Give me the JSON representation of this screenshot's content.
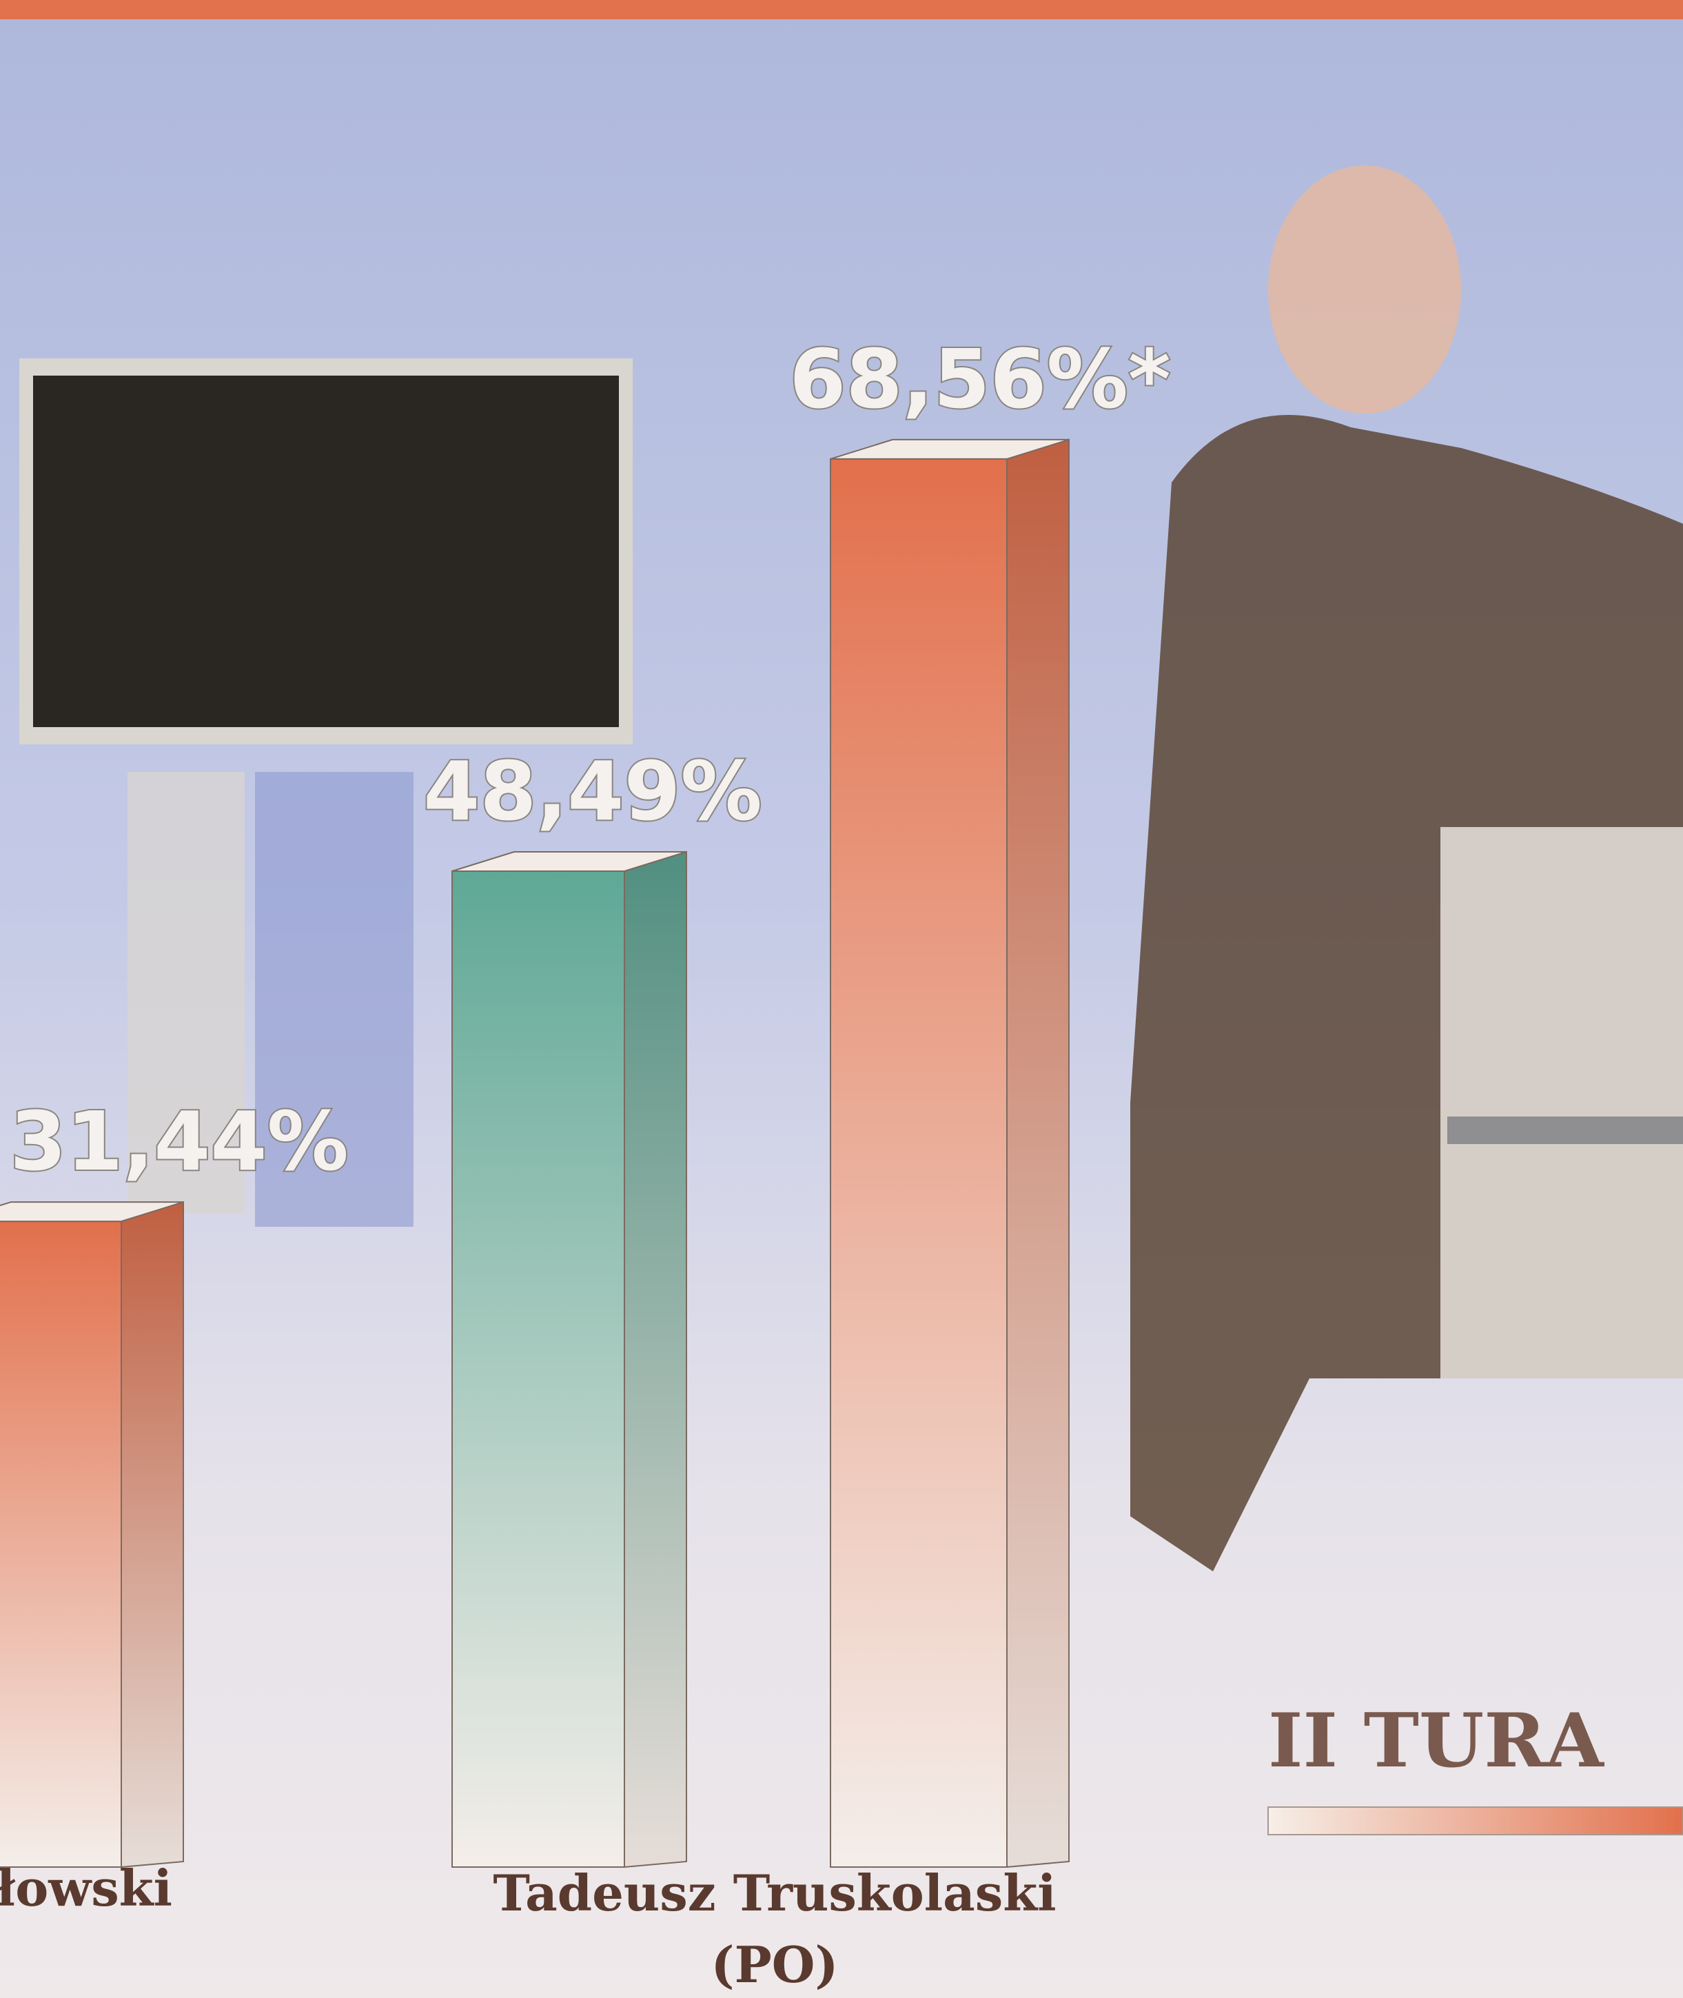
{
  "chart_data": {
    "type": "bar",
    "categories": [
      "łowski",
      "Tadeusz Truskolaski (PO)"
    ],
    "series": [
      {
        "color": "#5fa896",
        "values": [
          null,
          48.49
        ],
        "value_labels": [
          null,
          "48,49%"
        ]
      },
      {
        "name": "II TURA",
        "color": "#e2704c",
        "values": [
          31.44,
          68.56
        ],
        "value_labels": [
          "31,44%",
          "68,56%*"
        ]
      }
    ]
  }
}
